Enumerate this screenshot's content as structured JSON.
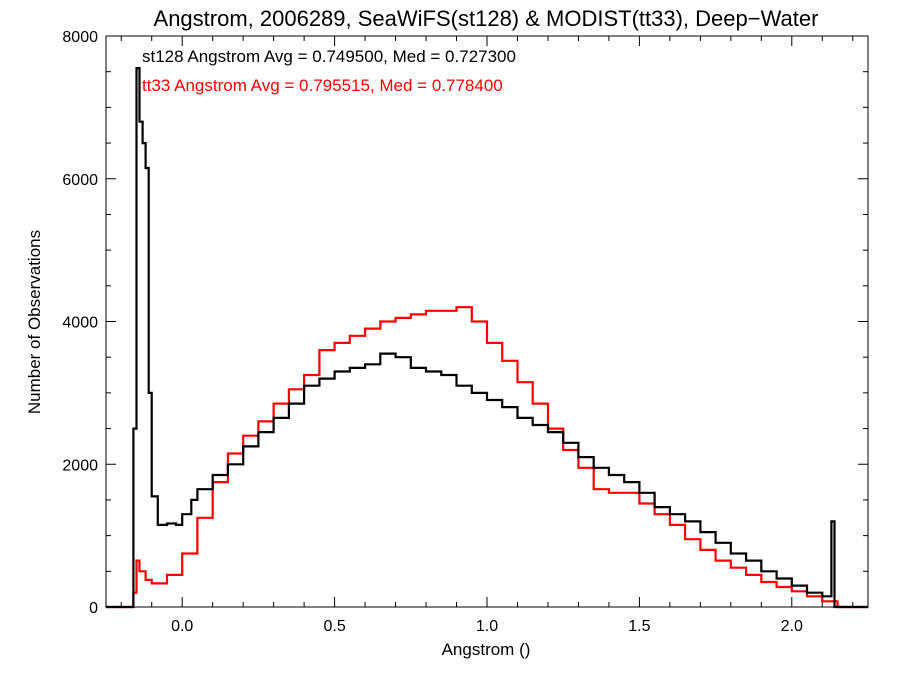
{
  "chart_data": {
    "type": "histogram",
    "title": "Angstrom, 2006289, SeaWiFS(st128) & MODIST(tt33), Deep−Water",
    "xlabel": "Angstrom ()",
    "ylabel": "Number of Observations",
    "xlim": [
      -0.25,
      2.25
    ],
    "ylim": [
      0,
      8000
    ],
    "x_ticks": [
      0.0,
      0.5,
      1.0,
      1.5,
      2.0
    ],
    "x_tick_labels": [
      "0.0",
      "0.5",
      "1.0",
      "1.5",
      "2.0"
    ],
    "y_ticks": [
      0,
      2000,
      4000,
      6000,
      8000
    ],
    "y_tick_labels": [
      "0",
      "2000",
      "4000",
      "6000",
      "8000"
    ],
    "grid": false,
    "annotations": [
      {
        "text": "st128 Angstrom Avg = 0.749500, Med = 0.727300",
        "color": "#000000"
      },
      {
        "text": "tt33 Angstrom Avg = 0.795515, Med = 0.778400",
        "color": "#ff0000"
      }
    ],
    "series": [
      {
        "color": "#000000",
        "x": [
          -0.25,
          -0.17,
          -0.16,
          -0.15,
          -0.14,
          -0.13,
          -0.12,
          -0.11,
          -0.1,
          -0.08,
          -0.05,
          -0.02,
          0.0,
          0.03,
          0.05,
          0.1,
          0.15,
          0.2,
          0.25,
          0.3,
          0.35,
          0.4,
          0.45,
          0.5,
          0.55,
          0.6,
          0.65,
          0.7,
          0.75,
          0.8,
          0.85,
          0.9,
          0.95,
          1.0,
          1.05,
          1.1,
          1.15,
          1.2,
          1.25,
          1.3,
          1.35,
          1.4,
          1.45,
          1.5,
          1.55,
          1.6,
          1.65,
          1.7,
          1.75,
          1.8,
          1.85,
          1.9,
          1.95,
          2.0,
          2.05,
          2.1,
          2.13,
          2.14,
          2.15,
          2.25
        ],
        "y": [
          0,
          0,
          2500,
          7550,
          6800,
          6500,
          6150,
          3000,
          1550,
          1150,
          1170,
          1150,
          1300,
          1500,
          1650,
          1850,
          2000,
          2250,
          2450,
          2650,
          2850,
          3100,
          3200,
          3300,
          3350,
          3400,
          3550,
          3500,
          3350,
          3300,
          3250,
          3100,
          3000,
          2900,
          2800,
          2650,
          2550,
          2450,
          2300,
          2100,
          1950,
          1850,
          1750,
          1600,
          1400,
          1300,
          1200,
          1050,
          900,
          750,
          650,
          500,
          400,
          300,
          200,
          150,
          1200,
          0,
          0,
          0
        ]
      },
      {
        "color": "#ff0000",
        "x": [
          -0.25,
          -0.17,
          -0.16,
          -0.15,
          -0.14,
          -0.12,
          -0.1,
          -0.05,
          0.0,
          0.05,
          0.1,
          0.15,
          0.2,
          0.25,
          0.3,
          0.35,
          0.4,
          0.45,
          0.5,
          0.55,
          0.6,
          0.65,
          0.7,
          0.75,
          0.8,
          0.85,
          0.9,
          0.95,
          1.0,
          1.05,
          1.1,
          1.15,
          1.2,
          1.25,
          1.3,
          1.35,
          1.4,
          1.45,
          1.5,
          1.55,
          1.6,
          1.65,
          1.7,
          1.75,
          1.8,
          1.85,
          1.9,
          1.95,
          2.0,
          2.05,
          2.1,
          2.15,
          2.25
        ],
        "y": [
          0,
          0,
          200,
          650,
          500,
          380,
          330,
          450,
          750,
          1250,
          1750,
          2150,
          2400,
          2600,
          2850,
          3050,
          3250,
          3600,
          3700,
          3800,
          3900,
          4000,
          4050,
          4100,
          4150,
          4150,
          4200,
          4000,
          3700,
          3450,
          3150,
          2850,
          2500,
          2200,
          1950,
          1650,
          1600,
          1600,
          1450,
          1300,
          1150,
          950,
          800,
          650,
          550,
          450,
          350,
          280,
          220,
          150,
          80,
          0,
          0
        ]
      }
    ]
  }
}
